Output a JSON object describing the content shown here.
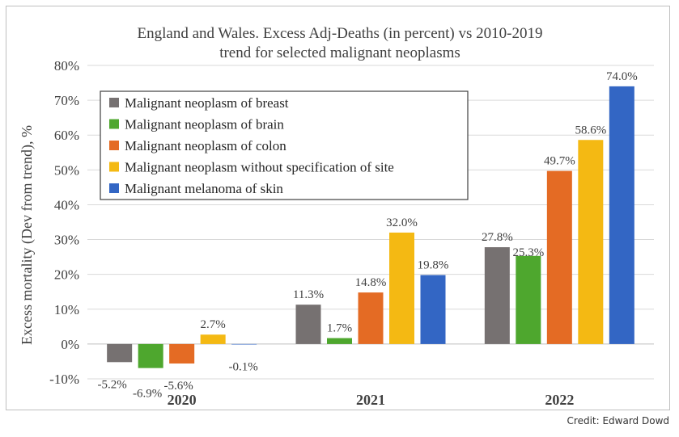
{
  "chart_data": {
    "type": "bar",
    "title_line1": "England and Wales. Excess Adj-Deaths (in percent) vs 2010-2019",
    "title_line2": "trend for selected malignant neoplasms",
    "ylabel": "Excess mortality (Dev from trend), %",
    "xlabel": "",
    "categories": [
      "2020",
      "2021",
      "2022"
    ],
    "ylim": [
      -10,
      80
    ],
    "yticks": [
      "-10%",
      "0%",
      "10%",
      "20%",
      "30%",
      "40%",
      "50%",
      "60%",
      "70%",
      "80%"
    ],
    "ytick_values": [
      -10,
      0,
      10,
      20,
      30,
      40,
      50,
      60,
      70,
      80
    ],
    "grid": true,
    "legend_position": "top-left",
    "series": [
      {
        "name": "Malignant neoplasm of breast",
        "color": "#767171",
        "values": [
          -5.2,
          11.3,
          27.8
        ],
        "labels": [
          "-5.2%",
          "11.3%",
          "27.8%"
        ]
      },
      {
        "name": "Malignant neoplasm of brain",
        "color": "#4ea72e",
        "values": [
          -6.9,
          1.7,
          25.3
        ],
        "labels": [
          "-6.9%",
          "1.7%",
          "25.3%"
        ]
      },
      {
        "name": "Malignant neoplasm of colon",
        "color": "#e46b24",
        "values": [
          -5.6,
          14.8,
          49.7
        ],
        "labels": [
          "-5.6%",
          "14.8%",
          "49.7%"
        ]
      },
      {
        "name": "Malignant neoplasm without specification of site",
        "color": "#f4b913",
        "values": [
          2.7,
          32.0,
          58.6
        ],
        "labels": [
          "2.7%",
          "32.0%",
          "58.6%"
        ]
      },
      {
        "name": "Malignant melanoma of skin",
        "color": "#3366c4",
        "values": [
          -0.1,
          19.8,
          74.0
        ],
        "labels": [
          "-0.1%",
          "19.8%",
          "74.0%"
        ]
      }
    ]
  },
  "credit": "Credit: Edward Dowd"
}
